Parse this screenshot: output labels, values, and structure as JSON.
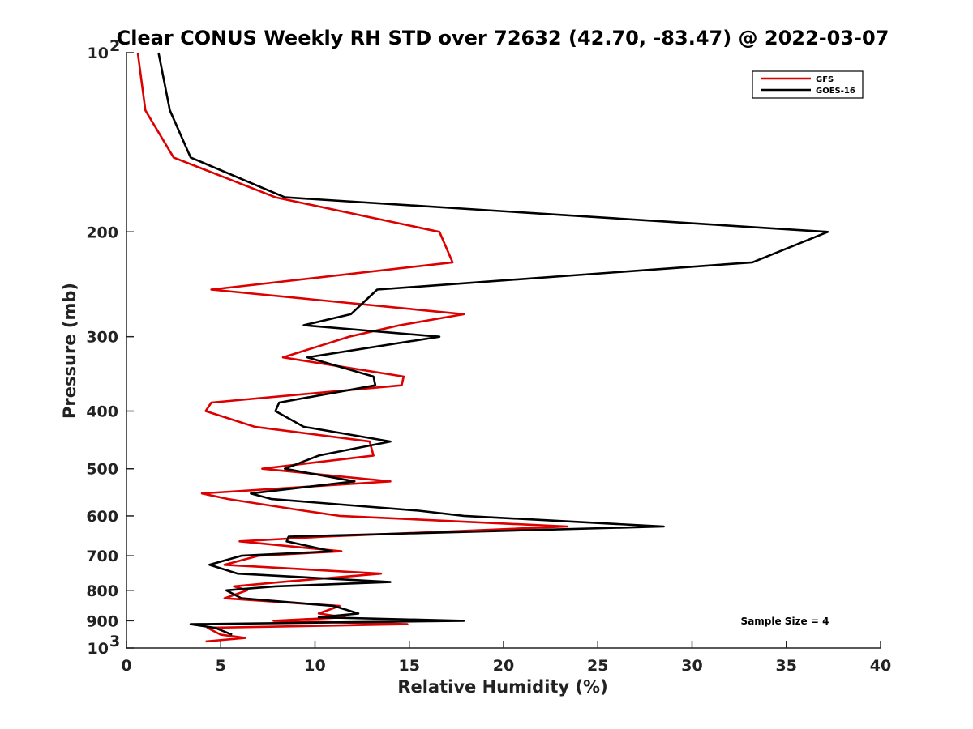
{
  "chart_data": {
    "type": "line",
    "title": "Clear CONUS Weekly RH STD over 72632 (42.70, -83.47) @ 2022-03-07",
    "xlabel": "Relative Humidity (%)",
    "ylabel": "Pressure (mb)",
    "xlim": [
      0,
      40
    ],
    "ylim": [
      100,
      1000
    ],
    "y_scale": "log",
    "y_reversed": true,
    "grid": false,
    "legend_position": "top-right",
    "x_ticks": [
      "0",
      "5",
      "10",
      "15",
      "20",
      "25",
      "30",
      "35",
      "40"
    ],
    "y_ticks": [
      {
        "value": 100,
        "base": "10",
        "exp": "2"
      },
      {
        "value": 200,
        "label": "200"
      },
      {
        "value": 300,
        "label": "300"
      },
      {
        "value": 400,
        "label": "400"
      },
      {
        "value": 500,
        "label": "500"
      },
      {
        "value": 600,
        "label": "600"
      },
      {
        "value": 700,
        "label": "700"
      },
      {
        "value": 800,
        "label": "800"
      },
      {
        "value": 900,
        "label": "900"
      },
      {
        "value": 1000,
        "base": "10",
        "exp": "3"
      }
    ],
    "annotation": "Sample Size = 4",
    "series": [
      {
        "name": "GFS",
        "color": "#dd0000",
        "points": [
          [
            0.6,
            100
          ],
          [
            1.0,
            125
          ],
          [
            2.5,
            150
          ],
          [
            7.9,
            175
          ],
          [
            16.6,
            200
          ],
          [
            17.3,
            225
          ],
          [
            4.5,
            250
          ],
          [
            17.9,
            275
          ],
          [
            14.5,
            287
          ],
          [
            11.8,
            300
          ],
          [
            8.3,
            325
          ],
          [
            14.7,
            350
          ],
          [
            14.6,
            362
          ],
          [
            4.5,
            387
          ],
          [
            4.2,
            400
          ],
          [
            6.8,
            425
          ],
          [
            12.9,
            450
          ],
          [
            13.1,
            475
          ],
          [
            7.2,
            500
          ],
          [
            14.0,
            525
          ],
          [
            4.0,
            550
          ],
          [
            5.4,
            562
          ],
          [
            9.4,
            588
          ],
          [
            11.3,
            600
          ],
          [
            23.4,
            625
          ],
          [
            10.5,
            650
          ],
          [
            6.0,
            662
          ],
          [
            11.4,
            688
          ],
          [
            7.0,
            700
          ],
          [
            5.2,
            725
          ],
          [
            13.5,
            750
          ],
          [
            8.2,
            775
          ],
          [
            5.7,
            788
          ],
          [
            6.4,
            800
          ],
          [
            5.2,
            825
          ],
          [
            11.3,
            850
          ],
          [
            10.2,
            875
          ],
          [
            11.6,
            888
          ],
          [
            7.8,
            900
          ],
          [
            14.9,
            912
          ],
          [
            4.3,
            925
          ],
          [
            5.0,
            950
          ],
          [
            6.3,
            962
          ],
          [
            4.2,
            975
          ]
        ]
      },
      {
        "name": "GOES-16",
        "color": "#000000",
        "points": [
          [
            1.7,
            100
          ],
          [
            2.3,
            125
          ],
          [
            3.4,
            150
          ],
          [
            8.4,
            175
          ],
          [
            37.2,
            200
          ],
          [
            33.2,
            225
          ],
          [
            13.3,
            250
          ],
          [
            11.9,
            275
          ],
          [
            9.4,
            287
          ],
          [
            16.6,
            300
          ],
          [
            9.6,
            325
          ],
          [
            13.1,
            350
          ],
          [
            13.2,
            362
          ],
          [
            8.1,
            387
          ],
          [
            7.9,
            400
          ],
          [
            9.4,
            425
          ],
          [
            14.0,
            450
          ],
          [
            10.2,
            475
          ],
          [
            8.4,
            500
          ],
          [
            12.1,
            525
          ],
          [
            6.6,
            550
          ],
          [
            7.7,
            562
          ],
          [
            15.5,
            588
          ],
          [
            17.9,
            600
          ],
          [
            28.5,
            625
          ],
          [
            8.6,
            650
          ],
          [
            8.5,
            662
          ],
          [
            10.9,
            688
          ],
          [
            6.1,
            700
          ],
          [
            4.4,
            725
          ],
          [
            5.9,
            750
          ],
          [
            14.0,
            775
          ],
          [
            7.9,
            788
          ],
          [
            5.3,
            800
          ],
          [
            6.1,
            825
          ],
          [
            11.0,
            850
          ],
          [
            12.3,
            875
          ],
          [
            10.2,
            888
          ],
          [
            17.9,
            900
          ],
          [
            3.4,
            912
          ],
          [
            4.7,
            925
          ],
          [
            5.6,
            950
          ]
        ]
      }
    ]
  }
}
